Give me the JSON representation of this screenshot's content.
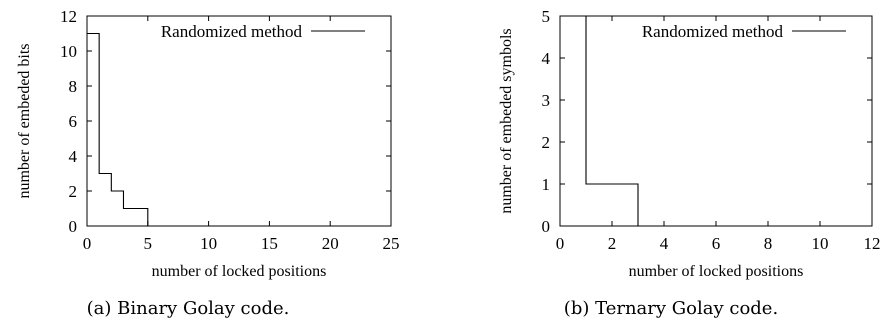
{
  "chart_data": [
    {
      "type": "line",
      "line_style": "step",
      "caption": "(a) Binary Golay code.",
      "xlabel": "number of locked positions",
      "ylabel": "number of embeded bits",
      "xlim": [
        0,
        25
      ],
      "ylim": [
        0,
        12
      ],
      "xticks": [
        0,
        5,
        10,
        15,
        20,
        25
      ],
      "yticks": [
        0,
        2,
        4,
        6,
        8,
        10,
        12
      ],
      "grid": false,
      "legend_position": "top-right",
      "series": [
        {
          "name": "Randomized method",
          "x": [
            0,
            1,
            2,
            3,
            5,
            23
          ],
          "y": [
            11,
            3,
            2,
            1,
            0,
            0
          ]
        }
      ]
    },
    {
      "type": "line",
      "line_style": "step",
      "caption": "(b) Ternary Golay code.",
      "xlabel": "number of locked positions",
      "ylabel": "number of embeded symbols",
      "xlim": [
        0,
        12
      ],
      "ylim": [
        0,
        5
      ],
      "xticks": [
        0,
        2,
        4,
        6,
        8,
        10,
        12
      ],
      "yticks": [
        0,
        1,
        2,
        3,
        4,
        5
      ],
      "grid": false,
      "legend_position": "top-right",
      "series": [
        {
          "name": "Randomized method",
          "x": [
            1,
            1,
            3,
            11
          ],
          "y": [
            5,
            1,
            0,
            0
          ]
        }
      ]
    }
  ]
}
